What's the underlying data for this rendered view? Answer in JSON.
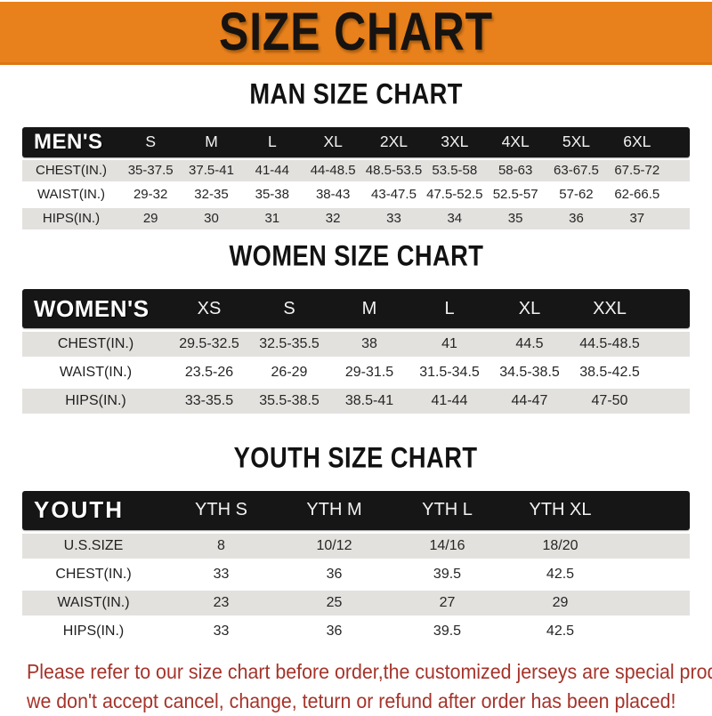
{
  "banner": {
    "title": "SIZE CHART"
  },
  "sections": [
    {
      "heading": "MAN SIZE CHART",
      "header_label": "MEN'S",
      "columns": [
        "S",
        "M",
        "L",
        "XL",
        "2XL",
        "3XL",
        "4XL",
        "5XL",
        "6XL"
      ],
      "rows": [
        {
          "label": "CHEST(IN.)",
          "values": [
            "35-37.5",
            "37.5-41",
            "41-44",
            "44-48.5",
            "48.5-53.5",
            "53.5-58",
            "58-63",
            "63-67.5",
            "67.5-72"
          ]
        },
        {
          "label": "WAIST(IN.)",
          "values": [
            "29-32",
            "32-35",
            "35-38",
            "38-43",
            "43-47.5",
            "47.5-52.5",
            "52.5-57",
            "57-62",
            "62-66.5"
          ]
        },
        {
          "label": "HIPS(IN.)",
          "values": [
            "29",
            "30",
            "31",
            "32",
            "33",
            "34",
            "35",
            "36",
            "37"
          ]
        }
      ]
    },
    {
      "heading": "WOMEN SIZE CHART",
      "header_label": "WOMEN'S",
      "columns": [
        "XS",
        "S",
        "M",
        "L",
        "XL",
        "XXL"
      ],
      "rows": [
        {
          "label": "CHEST(IN.)",
          "values": [
            "29.5-32.5",
            "32.5-35.5",
            "38",
            "41",
            "44.5",
            "44.5-48.5"
          ]
        },
        {
          "label": "WAIST(IN.)",
          "values": [
            "23.5-26",
            "26-29",
            "29-31.5",
            "31.5-34.5",
            "34.5-38.5",
            "38.5-42.5"
          ]
        },
        {
          "label": "HIPS(IN.)",
          "values": [
            "33-35.5",
            "35.5-38.5",
            "38.5-41",
            "41-44",
            "44-47",
            "47-50"
          ]
        }
      ]
    },
    {
      "heading": "YOUTH SIZE CHART",
      "header_label": "YOUTH",
      "columns": [
        "YTH S",
        "YTH M",
        "YTH L",
        "YTH XL"
      ],
      "rows": [
        {
          "label": "U.S.SIZE",
          "values": [
            "8",
            "10/12",
            "14/16",
            "18/20"
          ]
        },
        {
          "label": "CHEST(IN.)",
          "values": [
            "33",
            "36",
            "39.5",
            "42.5"
          ]
        },
        {
          "label": "WAIST(IN.)",
          "values": [
            "23",
            "25",
            "27",
            "29"
          ]
        },
        {
          "label": "HIPS(IN.)",
          "values": [
            "33",
            "36",
            "39.5",
            "42.5"
          ]
        }
      ]
    }
  ],
  "footer": {
    "line1": "Please refer to our size chart before order,the customized jerseys are special products,",
    "line2": "we don't accept cancel, change, teturn or refund after order has been placed!"
  },
  "colors": {
    "banner_orange": "#E8811C",
    "header_black": "#161616",
    "row_gray": "#E3E1DE",
    "footer_red": "#A5342B"
  }
}
